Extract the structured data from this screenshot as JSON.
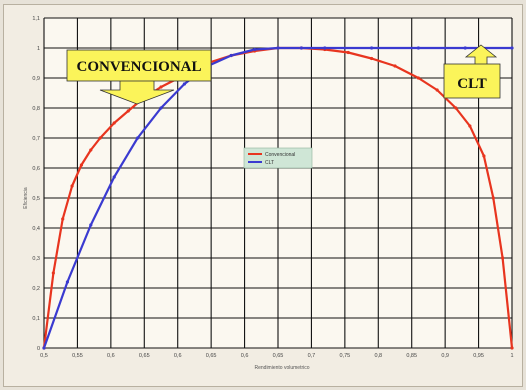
{
  "chart_data": {
    "type": "line",
    "xlabel": "Rendimiento volumetrico",
    "ylabel": "Eficiencia",
    "xlim": [
      0,
      1
    ],
    "ylim": [
      0,
      1.1
    ],
    "x_ticks": [
      "0,5",
      "0,55",
      "0,6",
      "0,65",
      "0,6",
      "0,65",
      "0,6",
      "0,65",
      "0,7",
      "0,75",
      "0,8",
      "0,85",
      "0,9",
      "0,95",
      "1"
    ],
    "y_ticks": [
      "0",
      "0,1",
      "0,2",
      "0,3",
      "0,4",
      "0,5",
      "0,6",
      "0,7",
      "0,8",
      "0,9",
      "1",
      "1,1"
    ],
    "grid": true,
    "legend_position": "center",
    "series": [
      {
        "name": "Convencional",
        "color": "#e8351f",
        "x": [
          0,
          0.02,
          0.04,
          0.06,
          0.08,
          0.1,
          0.12,
          0.15,
          0.18,
          0.21,
          0.25,
          0.3,
          0.35,
          0.4,
          0.45,
          0.5,
          0.55,
          0.6,
          0.65,
          0.7,
          0.75,
          0.8,
          0.84,
          0.88,
          0.91,
          0.94,
          0.96,
          0.98,
          1
        ],
        "y": [
          0,
          0.25,
          0.43,
          0.54,
          0.61,
          0.66,
          0.7,
          0.75,
          0.79,
          0.83,
          0.87,
          0.91,
          0.95,
          0.975,
          0.99,
          1.0,
          1.0,
          0.995,
          0.985,
          0.965,
          0.94,
          0.9,
          0.86,
          0.8,
          0.74,
          0.64,
          0.5,
          0.3,
          0
        ]
      },
      {
        "name": "CLT",
        "color": "#3a3ad0",
        "x": [
          0,
          0.05,
          0.1,
          0.15,
          0.2,
          0.25,
          0.3,
          0.35,
          0.4,
          0.45,
          0.5,
          0.55,
          0.6,
          0.7,
          0.8,
          0.9,
          1
        ],
        "y": [
          0,
          0.22,
          0.41,
          0.57,
          0.7,
          0.8,
          0.88,
          0.94,
          0.975,
          0.995,
          1.0,
          1.0,
          1.0,
          1.0,
          1.0,
          1.0,
          1.0
        ]
      }
    ],
    "annotations": [
      {
        "text": "CONVENCIONAL",
        "arrow": "down"
      },
      {
        "text": "CLT",
        "arrow": "up"
      }
    ]
  }
}
